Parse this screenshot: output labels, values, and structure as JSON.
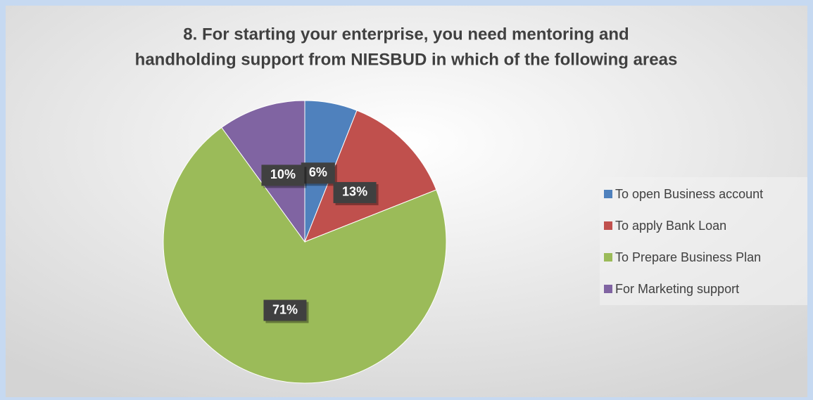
{
  "chart_data": {
    "type": "pie",
    "title": [
      "8. For starting your enterprise, you need mentoring and",
      "handholding support from NIESBUD in which of the following areas"
    ],
    "categories": [
      "To open Business account",
      "To apply Bank Loan",
      "To Prepare Business Plan",
      "For Marketing support"
    ],
    "values": [
      6,
      13,
      71,
      10
    ],
    "value_labels": [
      "6%",
      "13%",
      "71%",
      "10%"
    ],
    "colors": [
      "#4f81bd",
      "#c0504d",
      "#9bbb59",
      "#8064a2"
    ],
    "legend": "right"
  }
}
